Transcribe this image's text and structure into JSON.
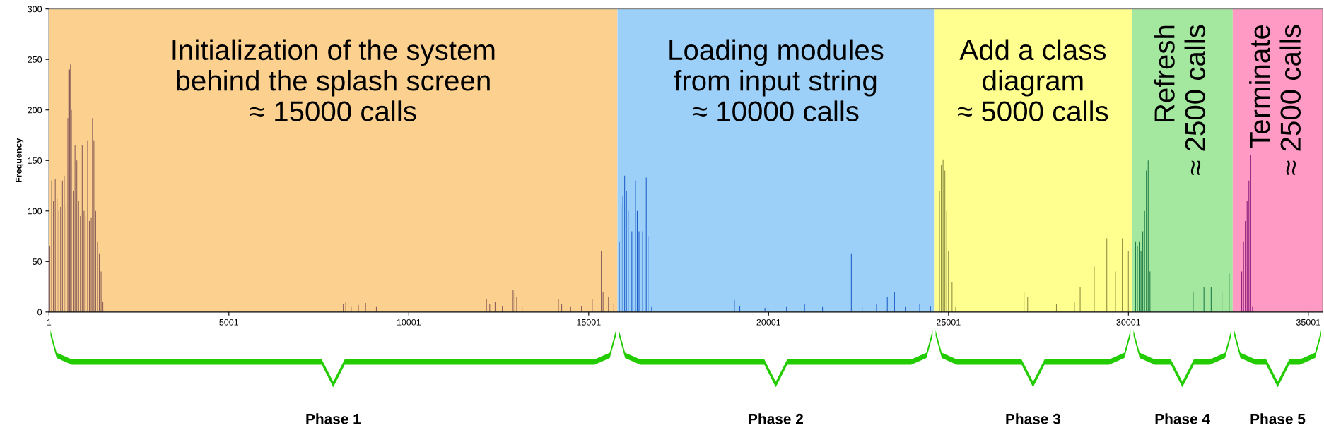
{
  "chart_data": {
    "type": "bar",
    "ylabel": "Frequency",
    "xlim": [
      1,
      35400
    ],
    "xticks": [
      1,
      5001,
      10001,
      15001,
      20001,
      25001,
      30001,
      35001
    ],
    "ylim": [
      0,
      300
    ],
    "yticks": [
      0,
      50,
      100,
      150,
      200,
      250,
      300
    ],
    "grid": false,
    "series": [
      {
        "color": "#8a5e5a",
        "x": [
          25,
          75,
          125,
          175,
          225,
          275,
          325,
          375,
          425,
          475,
          525,
          550,
          575,
          600,
          625,
          675,
          725,
          775,
          825,
          875,
          925,
          975,
          1025,
          1075,
          1125,
          1175,
          1210,
          1250,
          1300,
          1350,
          1400,
          1450,
          1500,
          8180,
          8250,
          8400,
          8600,
          8800,
          9100,
          12160,
          12250,
          12400,
          12600,
          12900,
          12950,
          13000,
          13150,
          14160,
          14250,
          14500,
          14800,
          15100,
          15350,
          15400,
          15550,
          15700
        ],
        "values": [
          65,
          130,
          110,
          132,
          112,
          100,
          104,
          130,
          135,
          105,
          192,
          240,
          240,
          245,
          200,
          120,
          165,
          150,
          110,
          95,
          165,
          100,
          95,
          170,
          90,
          93,
          192,
          170,
          100,
          70,
          58,
          40,
          10,
          8,
          10,
          5,
          7,
          9,
          5,
          13,
          8,
          10,
          6,
          22,
          20,
          15,
          5,
          13,
          8,
          5,
          6,
          13,
          60,
          20,
          15,
          8
        ]
      },
      {
        "color": "#1f5fc8",
        "x": [
          15850,
          15900,
          15950,
          16000,
          16050,
          16100,
          16200,
          16300,
          16350,
          16400,
          16500,
          16600,
          16650,
          16750,
          19050,
          19200,
          19900,
          20500,
          21000,
          21500,
          22300,
          22600,
          23000,
          23300,
          23500,
          23800,
          24200,
          24500
        ],
        "values": [
          70,
          105,
          115,
          135,
          120,
          100,
          80,
          130,
          100,
          80,
          80,
          133,
          75,
          5,
          12,
          6,
          4,
          5,
          8,
          5,
          58,
          5,
          8,
          15,
          20,
          5,
          8,
          6
        ]
      },
      {
        "color": "#8c8c40",
        "x": [
          24750,
          24800,
          24850,
          24900,
          24950,
          25000,
          25100,
          25200,
          27100,
          27200,
          28000,
          28500,
          28660,
          29050,
          29400,
          29640,
          29830,
          30000
        ],
        "values": [
          120,
          146,
          151,
          140,
          100,
          60,
          30,
          5,
          20,
          15,
          8,
          10,
          25,
          45,
          73,
          40,
          73,
          60
        ]
      },
      {
        "color": "#1e7a45",
        "x": [
          30200,
          30250,
          30300,
          30350,
          30400,
          30450,
          30500,
          30550,
          30600,
          31800,
          32100,
          32300,
          32600,
          32800
        ],
        "values": [
          70,
          65,
          70,
          60,
          80,
          100,
          140,
          150,
          40,
          20,
          25,
          25,
          20,
          38
        ]
      },
      {
        "color": "#8a1a7a",
        "x": [
          33150,
          33200,
          33250,
          33300,
          33350,
          33400,
          33450
        ],
        "values": [
          40,
          70,
          90,
          110,
          130,
          155,
          5
        ]
      }
    ],
    "bands": [
      {
        "axis": "x",
        "from": 1,
        "to": 15800,
        "color": "#fcd08e",
        "label": "Initialization of the system\nbehind the splash screen\n≈ 15000 calls"
      },
      {
        "axis": "x",
        "from": 15800,
        "to": 24600,
        "color": "#9dd0f8",
        "label": "Loading modules\nfrom input string\n≈ 10000 calls"
      },
      {
        "axis": "x",
        "from": 24600,
        "to": 30100,
        "color": "#ffff90",
        "label": "Add a class\ndiagram\n≈ 5000 calls"
      },
      {
        "axis": "x",
        "from": 30100,
        "to": 32900,
        "color": "#a4e8a0",
        "label": "Refresh\n≈ 2500 calls"
      },
      {
        "axis": "x",
        "from": 32900,
        "to": 35400,
        "color": "#ff9ac4",
        "label": "Terminate\n≈ 2500 calls"
      }
    ],
    "annotations": [
      "Phase 1",
      "Phase 2",
      "Phase 3",
      "Phase 4",
      "Phase 5"
    ]
  }
}
